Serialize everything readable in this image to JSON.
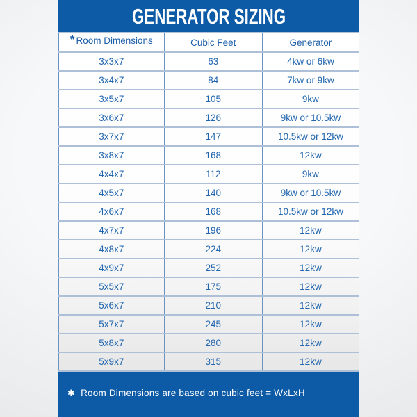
{
  "chart_data": {
    "type": "table",
    "title": "GENERATOR SIZING",
    "columns": [
      {
        "key": "dimensions",
        "label": "Room Dimensions",
        "marker": "*"
      },
      {
        "key": "cubic_feet",
        "label": "Cubic Feet"
      },
      {
        "key": "generator",
        "label": "Generator"
      }
    ],
    "rows": [
      {
        "dimensions": "3x3x7",
        "cubic_feet": "63",
        "generator": "4kw or 6kw"
      },
      {
        "dimensions": "3x4x7",
        "cubic_feet": "84",
        "generator": "7kw or 9kw"
      },
      {
        "dimensions": "3x5x7",
        "cubic_feet": "105",
        "generator": "9kw"
      },
      {
        "dimensions": "3x6x7",
        "cubic_feet": "126",
        "generator": "9kw or 10.5kw"
      },
      {
        "dimensions": "3x7x7",
        "cubic_feet": "147",
        "generator": "10.5kw or 12kw"
      },
      {
        "dimensions": "3x8x7",
        "cubic_feet": "168",
        "generator": "12kw"
      },
      {
        "dimensions": "4x4x7",
        "cubic_feet": "112",
        "generator": "9kw"
      },
      {
        "dimensions": "4x5x7",
        "cubic_feet": "140",
        "generator": "9kw or 10.5kw"
      },
      {
        "dimensions": "4x6x7",
        "cubic_feet": "168",
        "generator": "10.5kw or 12kw"
      },
      {
        "dimensions": "4x7x7",
        "cubic_feet": "196",
        "generator": "12kw"
      },
      {
        "dimensions": "4x8x7",
        "cubic_feet": "224",
        "generator": "12kw"
      },
      {
        "dimensions": "4x9x7",
        "cubic_feet": "252",
        "generator": "12kw"
      },
      {
        "dimensions": "5x5x7",
        "cubic_feet": "175",
        "generator": "12kw"
      },
      {
        "dimensions": "5x6x7",
        "cubic_feet": "210",
        "generator": "12kw"
      },
      {
        "dimensions": "5x7x7",
        "cubic_feet": "245",
        "generator": "12kw"
      },
      {
        "dimensions": "5x8x7",
        "cubic_feet": "280",
        "generator": "12kw"
      },
      {
        "dimensions": "5x9x7",
        "cubic_feet": "315",
        "generator": "12kw"
      }
    ],
    "footnote_marker": "✱",
    "footnote_text": "Room Dimensions are based on cubic feet = WxLxH"
  },
  "colors": {
    "poster_blue": "#0d5aa6",
    "cell_text_blue": "#2166ae",
    "header_text_blue": "#1d5fa9",
    "grid_vertical": "#6b93c0",
    "grid_horizontal": "#aec0d7",
    "title_text": "#ffffff"
  }
}
